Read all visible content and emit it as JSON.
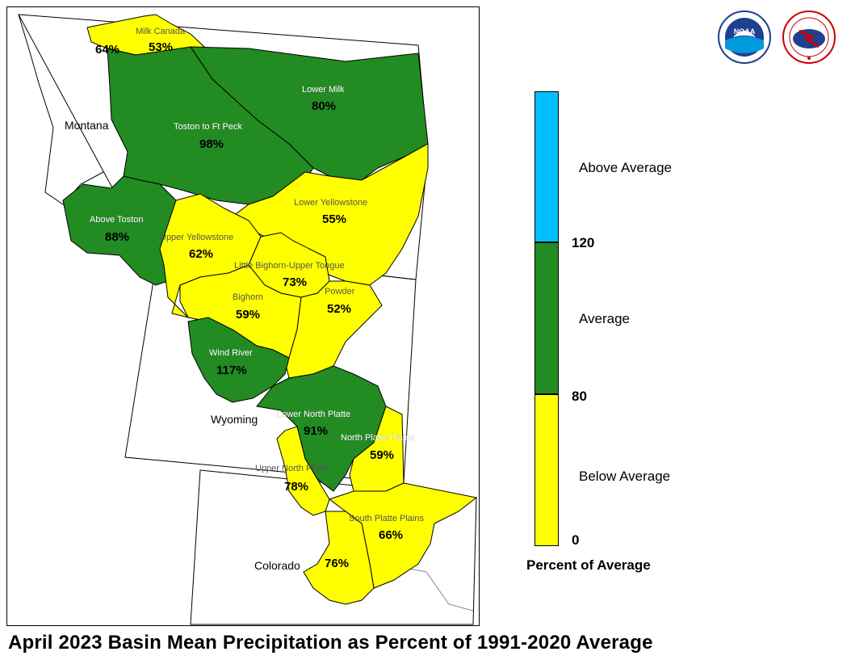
{
  "title": "April 2023 Basin Mean Precipitation as Percent of 1991-2020 Average",
  "colors": {
    "above": "#00bfff",
    "average": "#228b22",
    "below": "#ffff00"
  },
  "legend": {
    "title": "Percent of Average",
    "categories": [
      {
        "label": "Above Average",
        "color": "#00bfff"
      },
      {
        "label": "Average",
        "color": "#228b22"
      },
      {
        "label": "Below Average",
        "color": "#ffff00"
      }
    ],
    "ticks": [
      "120",
      "80",
      "0"
    ]
  },
  "states": [
    "Montana",
    "Wyoming",
    "Colorado"
  ],
  "basins": [
    {
      "name": "Milk Canada",
      "value": "53%",
      "class": "below"
    },
    {
      "name": "",
      "value": "64%",
      "class": "below"
    },
    {
      "name": "Lower Milk",
      "value": "80%",
      "class": "average"
    },
    {
      "name": "Toston to Ft Peck",
      "value": "98%",
      "class": "average"
    },
    {
      "name": "Above Toston",
      "value": "88%",
      "class": "average"
    },
    {
      "name": "Lower Yellowstone",
      "value": "55%",
      "class": "below"
    },
    {
      "name": "Upper Yellowstone",
      "value": "62%",
      "class": "below"
    },
    {
      "name": "Little Bighorn-Upper Tongue",
      "value": "73%",
      "class": "below"
    },
    {
      "name": "Bighorn",
      "value": "59%",
      "class": "below"
    },
    {
      "name": "Powder",
      "value": "52%",
      "class": "below"
    },
    {
      "name": "Wind River",
      "value": "117%",
      "class": "average"
    },
    {
      "name": "Lower North Platte",
      "value": "91%",
      "class": "average"
    },
    {
      "name": "North Platte Plains",
      "value": "59%",
      "class": "below"
    },
    {
      "name": "Upper North Platte",
      "value": "78%",
      "class": "below"
    },
    {
      "name": "South Platte Plains",
      "value": "66%",
      "class": "below"
    },
    {
      "name": "",
      "value": "76%",
      "class": "below"
    }
  ],
  "logos": [
    {
      "name": "NOAA",
      "text": "NOAA"
    },
    {
      "name": "National Weather Service",
      "text": "NATIONAL WEATHER SERVICE"
    }
  ]
}
